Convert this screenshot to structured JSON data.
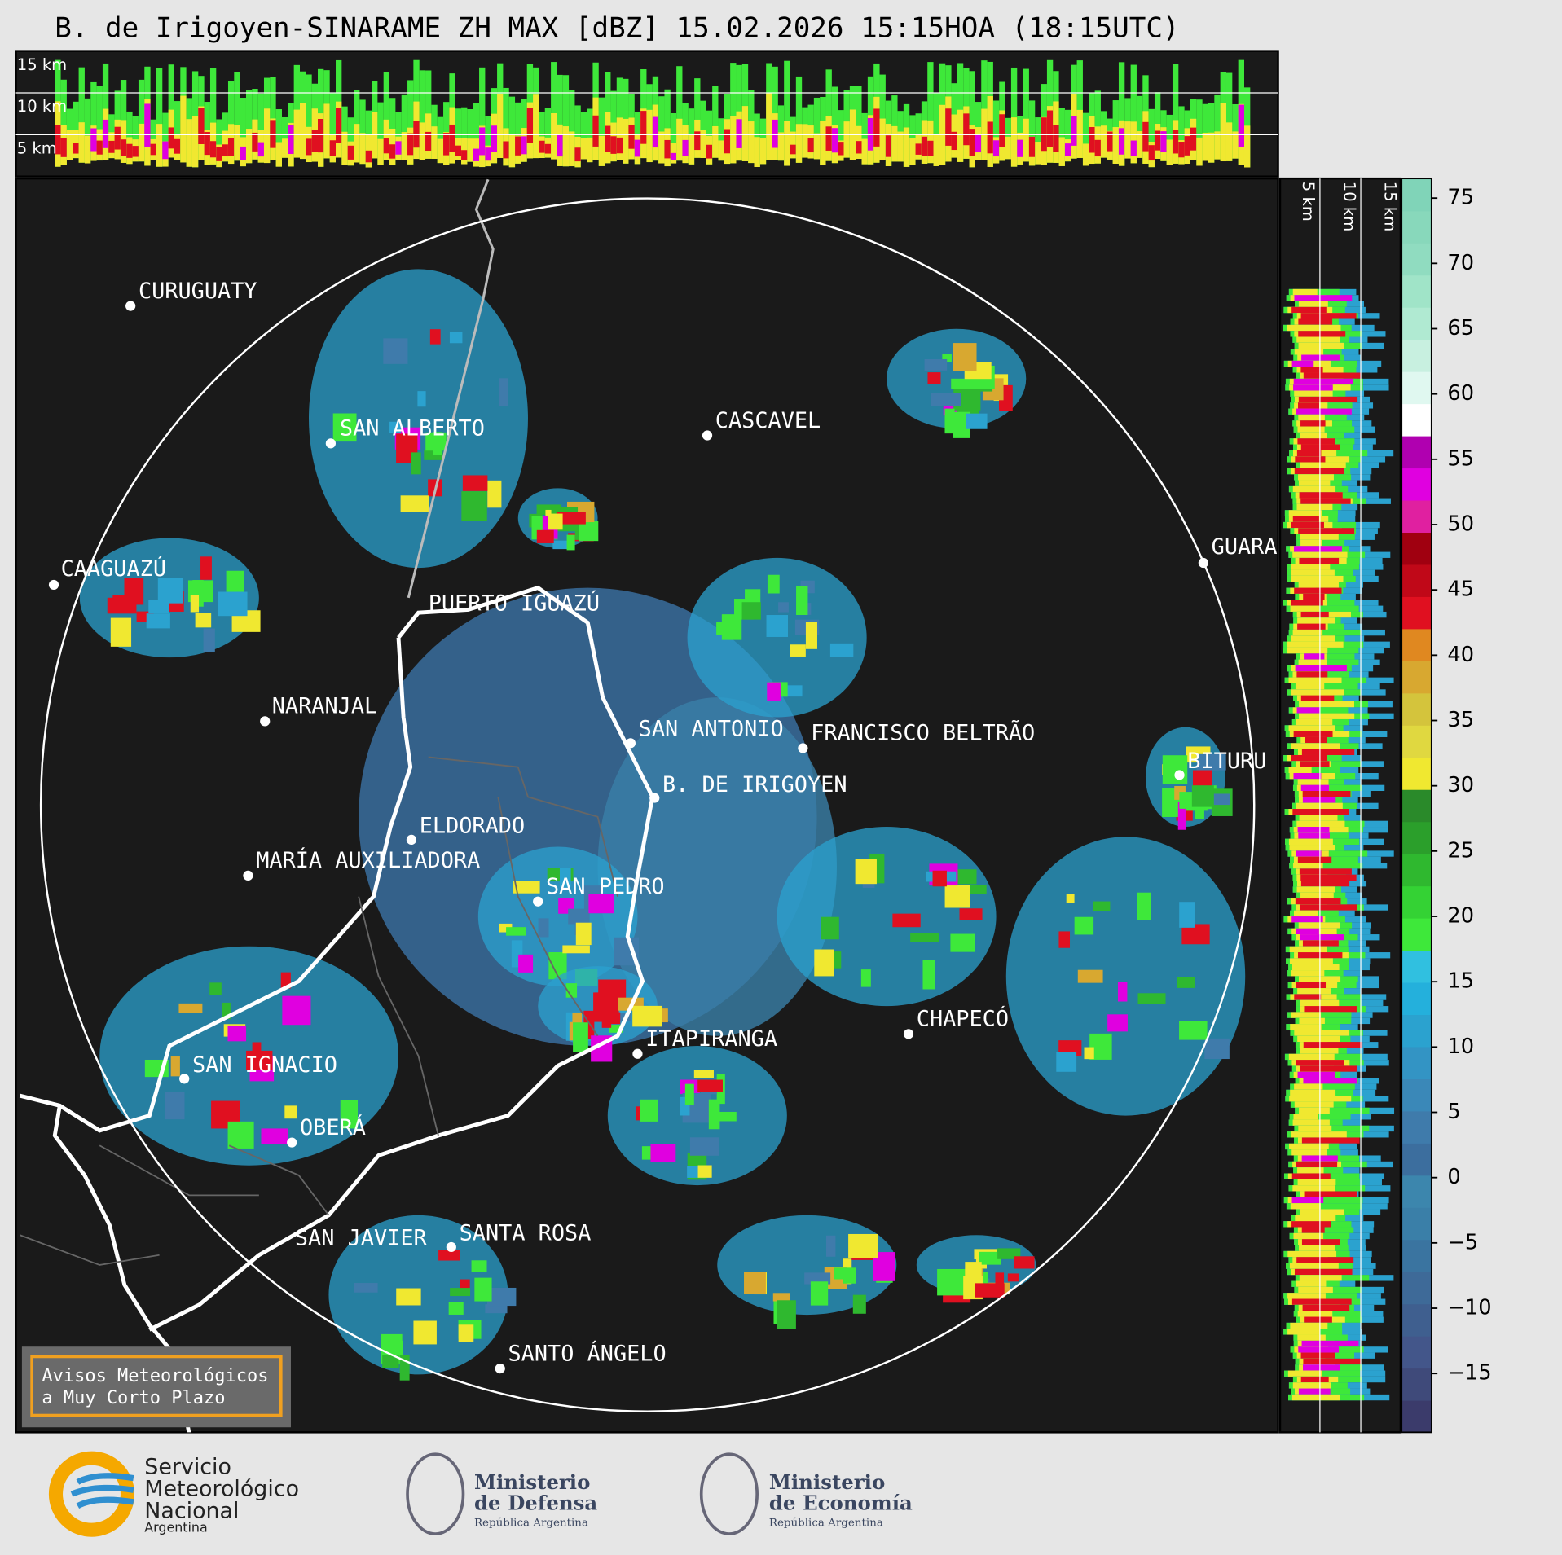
{
  "header": {
    "title": "B. de Irigoyen-SINARAME ZH MAX [dBZ] 15.02.2026 15:15HOA (18:15UTC)"
  },
  "profiles": {
    "top_labels": [
      "15 km",
      "10 km",
      "5 km"
    ],
    "side_labels": [
      "5 km",
      "10 km",
      "15 km"
    ]
  },
  "cities": [
    "CURUGUATY",
    "SAN ALBERTO",
    "CASCAVEL",
    "GUARA",
    "CAAGUAZÚ",
    "PUERTO IGUAZÚ",
    "NARANJAL",
    "SAN ANTONIO",
    "FRANCISCO BELTRÃO",
    "BITURU",
    "B. DE IRIGOYEN",
    "ELDORADO",
    "MARÍA AUXILIADORA",
    "SAN PEDRO",
    "CHAPECÓ",
    "ITAPIRANGA",
    "SAN IGNACIO",
    "OBERÁ",
    "SAN JAVIER",
    "SANTA ROSA",
    "SANTO ÁNGELO"
  ],
  "colorbar": {
    "ylim": [
      -19.5,
      76.5
    ],
    "yticks": [
      75,
      70,
      65,
      60,
      55,
      50,
      45,
      40,
      35,
      30,
      25,
      20,
      15,
      10,
      5,
      0,
      {
        "value": -5,
        "label": "−5"
      },
      {
        "value": -10,
        "label": "−10"
      },
      {
        "value": -15,
        "label": "−15"
      }
    ],
    "colors": [
      "#3b3b6b",
      "#3f4a7a",
      "#43568a",
      "#3f5f8f",
      "#3e6a98",
      "#3a74a0",
      "#3a7fa8",
      "#3c86ad",
      "#3c6e9e",
      "#3f7bab",
      "#3a88b8",
      "#3394c4",
      "#2ba2cf",
      "#24b0dc",
      "#30c0e0",
      "#3ee83a",
      "#34d234",
      "#2fb82f",
      "#2b9f2b",
      "#2a8a2a",
      "#f0e830",
      "#e0d840",
      "#d4c43c",
      "#d8a830",
      "#e08820",
      "#e01020",
      "#c00818",
      "#a00010",
      "#e020a0",
      "#e000e0",
      "#b000b0",
      "#ffffff",
      "#e0f8f0",
      "#c8f0e0",
      "#b0ead2",
      "#a0e4c8",
      "#90dcc0",
      "#88d8bb",
      "#80d4b8"
    ]
  },
  "warning": {
    "lines": [
      "Avisos Meteorológicos",
      "a Muy Corto Plazo"
    ]
  },
  "logos": {
    "smn": [
      "Servicio",
      "Meteorológico",
      "Nacional",
      "Argentina"
    ],
    "defensa": [
      "Ministerio",
      "de Defensa",
      "República Argentina"
    ],
    "economia": [
      "Ministerio",
      "de Economía",
      "República Argentina"
    ]
  }
}
